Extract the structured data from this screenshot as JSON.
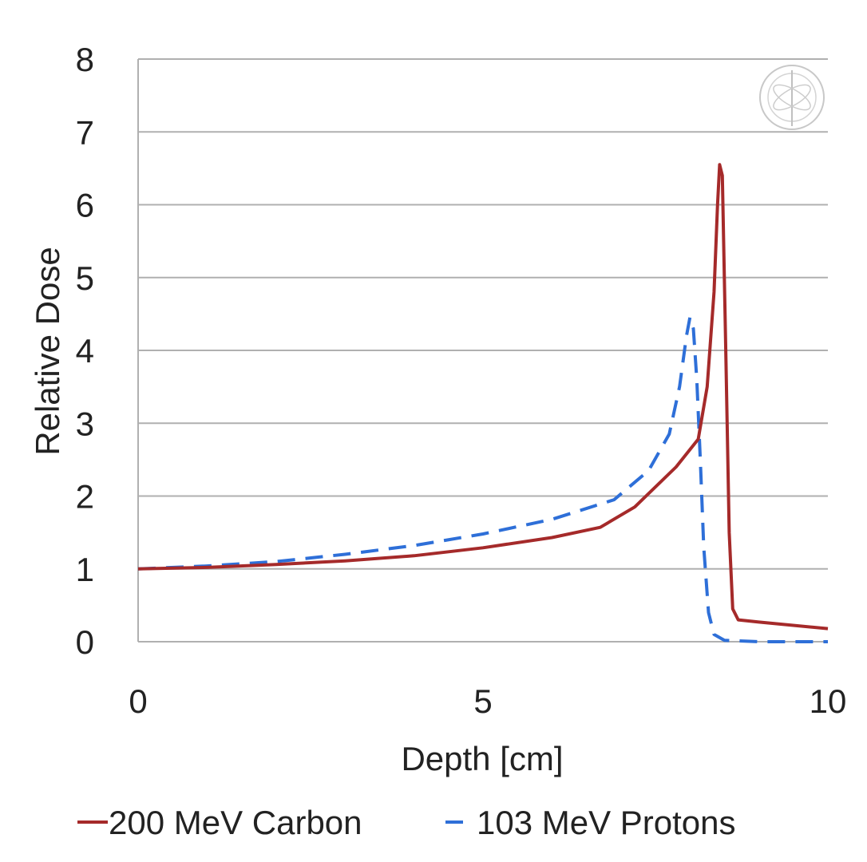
{
  "chart_data": {
    "type": "line",
    "title": "",
    "xlabel": "Depth [cm]",
    "ylabel": "Relative Dose",
    "xlim": [
      0,
      10
    ],
    "ylim": [
      0,
      8
    ],
    "xticks": [
      0,
      5,
      10
    ],
    "yticks": [
      0,
      1,
      2,
      3,
      4,
      5,
      6,
      7,
      8
    ],
    "grid": "horizontal",
    "legend_position": "bottom",
    "series": [
      {
        "name": "200 MeV Carbon",
        "color": "#a52a2a",
        "style": "solid",
        "points": [
          [
            0,
            1.0
          ],
          [
            1,
            1.02
          ],
          [
            2,
            1.06
          ],
          [
            3,
            1.11
          ],
          [
            4,
            1.18
          ],
          [
            5,
            1.29
          ],
          [
            6,
            1.43
          ],
          [
            6.7,
            1.57
          ],
          [
            7.2,
            1.85
          ],
          [
            7.8,
            2.4
          ],
          [
            8.12,
            2.78
          ],
          [
            8.25,
            3.5
          ],
          [
            8.35,
            4.8
          ],
          [
            8.4,
            6.0
          ],
          [
            8.43,
            6.55
          ],
          [
            8.47,
            6.4
          ],
          [
            8.52,
            4.0
          ],
          [
            8.57,
            1.5
          ],
          [
            8.62,
            0.45
          ],
          [
            8.7,
            0.3
          ],
          [
            9.0,
            0.27
          ],
          [
            10,
            0.18
          ]
        ]
      },
      {
        "name": "103 MeV Protons",
        "color": "#2e6fd8",
        "style": "dashed",
        "points": [
          [
            0,
            1.0
          ],
          [
            1,
            1.04
          ],
          [
            2,
            1.1
          ],
          [
            3,
            1.2
          ],
          [
            4,
            1.32
          ],
          [
            5,
            1.48
          ],
          [
            6,
            1.68
          ],
          [
            6.9,
            1.95
          ],
          [
            7.4,
            2.35
          ],
          [
            7.7,
            2.85
          ],
          [
            7.85,
            3.5
          ],
          [
            7.95,
            4.2
          ],
          [
            8.0,
            4.45
          ],
          [
            8.05,
            4.3
          ],
          [
            8.1,
            3.6
          ],
          [
            8.15,
            2.5
          ],
          [
            8.2,
            1.3
          ],
          [
            8.27,
            0.4
          ],
          [
            8.35,
            0.1
          ],
          [
            8.5,
            0.02
          ],
          [
            9,
            0.0
          ],
          [
            10,
            0.0
          ]
        ]
      }
    ]
  },
  "watermark": "logo-seal"
}
